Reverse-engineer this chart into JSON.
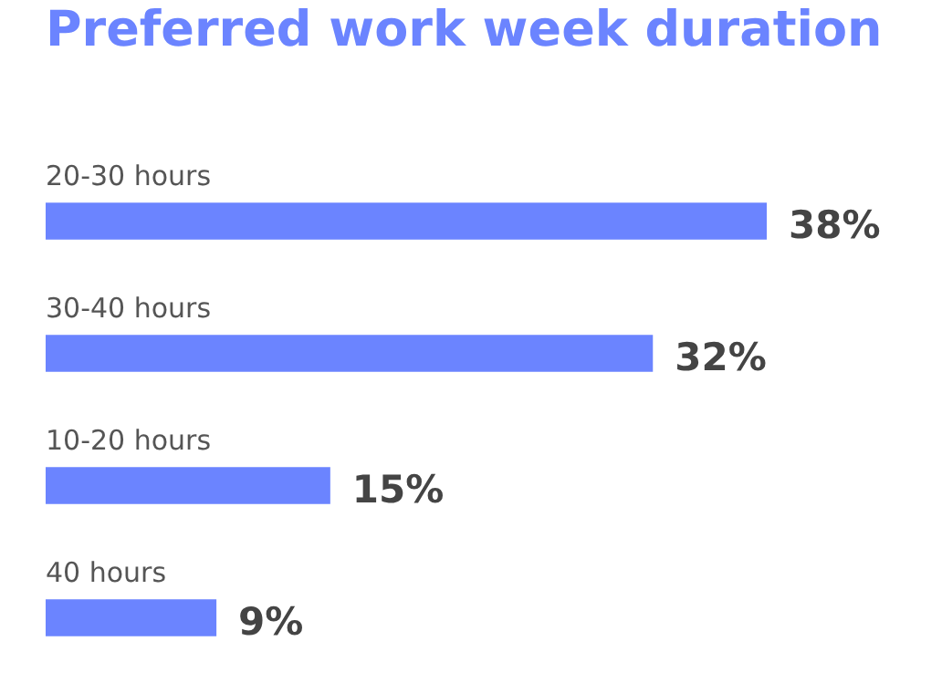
{
  "chart_data": {
    "type": "bar",
    "orientation": "horizontal",
    "title": "Preferred work week duration",
    "categories": [
      "20-30 hours",
      "30-40 hours",
      "10-20 hours",
      "40 hours"
    ],
    "values": [
      38,
      32,
      15,
      9
    ],
    "value_labels": [
      "38%",
      "32%",
      "15%",
      "9%"
    ],
    "color": "#6b84ff"
  }
}
